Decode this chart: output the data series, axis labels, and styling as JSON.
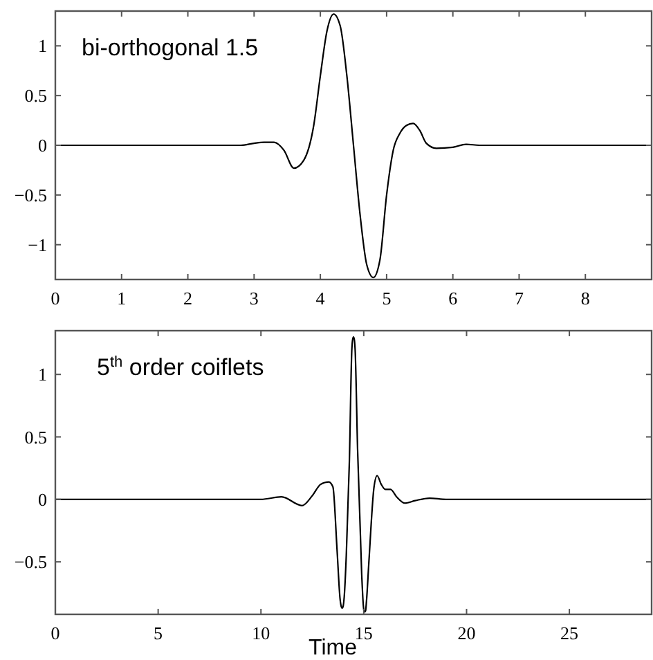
{
  "chart_data": [
    {
      "type": "line",
      "title": "bi-orthogonal 1.5",
      "x": [
        0,
        1,
        2,
        2.8,
        3.0,
        3.15,
        3.3,
        3.45,
        3.6,
        3.75,
        3.9,
        4.0,
        4.1,
        4.2,
        4.3,
        4.4,
        4.5,
        4.6,
        4.7,
        4.8,
        4.9,
        5.0,
        5.1,
        5.2,
        5.3,
        5.4,
        5.5,
        5.6,
        5.75,
        6.0,
        6.2,
        6.4,
        7,
        8,
        9
      ],
      "series": [
        {
          "color": "#000000",
          "values": [
            0,
            0,
            0,
            0,
            0.02,
            0.03,
            0.03,
            -0.05,
            -0.23,
            -0.15,
            0.2,
            0.7,
            1.15,
            1.32,
            1.2,
            0.7,
            0,
            -0.7,
            -1.2,
            -1.33,
            -1.15,
            -0.5,
            -0.05,
            0.12,
            0.2,
            0.22,
            0.15,
            0.02,
            -0.03,
            -0.02,
            0.01,
            0,
            0,
            0,
            0
          ]
        }
      ],
      "xlim": [
        0,
        9
      ],
      "xticks": [
        0,
        1,
        2,
        3,
        4,
        5,
        6,
        7,
        8
      ],
      "ylim": [
        -1.35,
        1.35
      ],
      "yticks": [
        -1,
        -0.5,
        0,
        0.5,
        1
      ],
      "grid": false,
      "line_style": "solid"
    },
    {
      "type": "line",
      "title": "5$^{th}$ order coiflets",
      "xlabel": "Time",
      "x": [
        0,
        5,
        9,
        10,
        11,
        12,
        12.5,
        12.9,
        13.3,
        13.5,
        13.7,
        13.85,
        13.91,
        13.95,
        13.99,
        14.05,
        14.15,
        14.3,
        14.42,
        14.46,
        14.5,
        14.54,
        14.58,
        14.7,
        14.9,
        14.98,
        15.01,
        15.05,
        15.09,
        15.13,
        15.25,
        15.5,
        15.65,
        15.85,
        16.05,
        16.3,
        16.6,
        17.0,
        17.5,
        18.2,
        19,
        25,
        29
      ],
      "series": [
        {
          "color": "#000000",
          "values": [
            0,
            0,
            0,
            0,
            0.02,
            -0.05,
            0.03,
            0.12,
            0.14,
            0.1,
            -0.4,
            -0.8,
            -0.86,
            -0.87,
            -0.86,
            -0.78,
            -0.45,
            0.3,
            1.2,
            1.28,
            1.3,
            1.28,
            1.2,
            0.4,
            -0.6,
            -0.85,
            -0.89,
            -0.9,
            -0.89,
            -0.82,
            -0.5,
            0.1,
            0.19,
            0.12,
            0.08,
            0.08,
            0.02,
            -0.03,
            -0.01,
            0.01,
            0,
            0,
            0
          ]
        }
      ],
      "xlim": [
        0,
        29
      ],
      "xticks": [
        0,
        5,
        10,
        15,
        20,
        25
      ],
      "ylim": [
        -0.92,
        1.35
      ],
      "yticks": [
        -0.5,
        0,
        0.5,
        1
      ],
      "grid": false,
      "line_style": "solid"
    }
  ]
}
